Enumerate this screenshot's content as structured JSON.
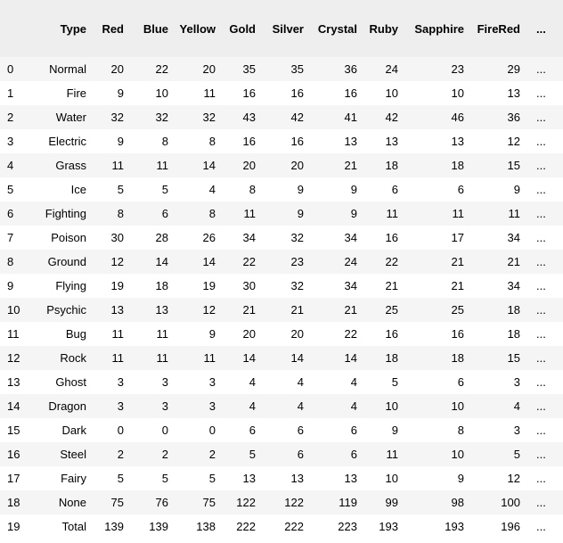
{
  "table": {
    "index_header": "",
    "columns": [
      "Type",
      "Red",
      "Blue",
      "Yellow",
      "Gold",
      "Silver",
      "Crystal",
      "Ruby",
      "Sapphire",
      "FireRed",
      "..."
    ],
    "rows": [
      {
        "index": "0",
        "cells": [
          "Normal",
          "20",
          "22",
          "20",
          "35",
          "35",
          "36",
          "24",
          "23",
          "29",
          "..."
        ]
      },
      {
        "index": "1",
        "cells": [
          "Fire",
          "9",
          "10",
          "11",
          "16",
          "16",
          "16",
          "10",
          "10",
          "13",
          "..."
        ]
      },
      {
        "index": "2",
        "cells": [
          "Water",
          "32",
          "32",
          "32",
          "43",
          "42",
          "41",
          "42",
          "46",
          "36",
          "..."
        ]
      },
      {
        "index": "3",
        "cells": [
          "Electric",
          "9",
          "8",
          "8",
          "16",
          "16",
          "13",
          "13",
          "13",
          "12",
          "..."
        ]
      },
      {
        "index": "4",
        "cells": [
          "Grass",
          "11",
          "11",
          "14",
          "20",
          "20",
          "21",
          "18",
          "18",
          "15",
          "..."
        ]
      },
      {
        "index": "5",
        "cells": [
          "Ice",
          "5",
          "5",
          "4",
          "8",
          "9",
          "9",
          "6",
          "6",
          "9",
          "..."
        ]
      },
      {
        "index": "6",
        "cells": [
          "Fighting",
          "8",
          "6",
          "8",
          "11",
          "9",
          "9",
          "11",
          "11",
          "11",
          "..."
        ]
      },
      {
        "index": "7",
        "cells": [
          "Poison",
          "30",
          "28",
          "26",
          "34",
          "32",
          "34",
          "16",
          "17",
          "34",
          "..."
        ]
      },
      {
        "index": "8",
        "cells": [
          "Ground",
          "12",
          "14",
          "14",
          "22",
          "23",
          "24",
          "22",
          "21",
          "21",
          "..."
        ]
      },
      {
        "index": "9",
        "cells": [
          "Flying",
          "19",
          "18",
          "19",
          "30",
          "32",
          "34",
          "21",
          "21",
          "34",
          "..."
        ]
      },
      {
        "index": "10",
        "cells": [
          "Psychic",
          "13",
          "13",
          "12",
          "21",
          "21",
          "21",
          "25",
          "25",
          "18",
          "..."
        ]
      },
      {
        "index": "11",
        "cells": [
          "Bug",
          "11",
          "11",
          "9",
          "20",
          "20",
          "22",
          "16",
          "16",
          "18",
          "..."
        ]
      },
      {
        "index": "12",
        "cells": [
          "Rock",
          "11",
          "11",
          "11",
          "14",
          "14",
          "14",
          "18",
          "18",
          "15",
          "..."
        ]
      },
      {
        "index": "13",
        "cells": [
          "Ghost",
          "3",
          "3",
          "3",
          "4",
          "4",
          "4",
          "5",
          "6",
          "3",
          "..."
        ]
      },
      {
        "index": "14",
        "cells": [
          "Dragon",
          "3",
          "3",
          "3",
          "4",
          "4",
          "4",
          "10",
          "10",
          "4",
          "..."
        ]
      },
      {
        "index": "15",
        "cells": [
          "Dark",
          "0",
          "0",
          "0",
          "6",
          "6",
          "6",
          "9",
          "8",
          "3",
          "..."
        ]
      },
      {
        "index": "16",
        "cells": [
          "Steel",
          "2",
          "2",
          "2",
          "5",
          "6",
          "6",
          "11",
          "10",
          "5",
          "..."
        ]
      },
      {
        "index": "17",
        "cells": [
          "Fairy",
          "5",
          "5",
          "5",
          "13",
          "13",
          "13",
          "10",
          "9",
          "12",
          "..."
        ]
      },
      {
        "index": "18",
        "cells": [
          "None",
          "75",
          "76",
          "75",
          "122",
          "122",
          "119",
          "99",
          "98",
          "100",
          "..."
        ]
      },
      {
        "index": "19",
        "cells": [
          "Total",
          "139",
          "139",
          "138",
          "222",
          "222",
          "223",
          "193",
          "193",
          "196",
          "..."
        ]
      }
    ]
  },
  "colors": {
    "header_background": "#eeeeee",
    "odd_row_background": "#f5f5f5",
    "even_row_background": "#ffffff",
    "text": "#000000"
  }
}
